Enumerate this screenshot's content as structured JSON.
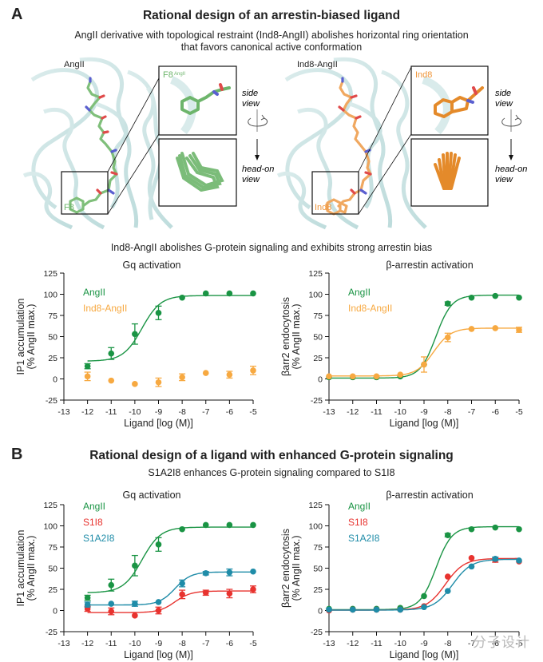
{
  "panelA": {
    "letter": "A",
    "title": "Rational design of an arrestin-biased ligand",
    "subtitle_line1": "AngII derivative with topological restraint (Ind8-AngII) abolishes horizontal ring orientation",
    "subtitle_line2": "that favors canonical active conformation",
    "structures": {
      "left": {
        "name": "AngII",
        "residue_label": "F8",
        "inset_label": "F8",
        "inset_superscript": "AngII",
        "color": "#6db56b"
      },
      "right": {
        "name": "Ind8-AngII",
        "residue_label": "Ind8",
        "inset_label": "Ind8",
        "color": "#f0963a"
      },
      "side_view": "side",
      "side_view2": "view",
      "headon_view": "head-on",
      "headon_view2": "view"
    },
    "charts_heading": "Ind8-AngII abolishes G-protein signaling and exhibits strong arrestin bias"
  },
  "panelB": {
    "letter": "B",
    "title": "Rational design of a ligand with enhanced G-protein signaling",
    "subtitle": "S1A2I8 enhances G-protein signaling compared to S1I8"
  },
  "colors": {
    "AngII": "#1a9444",
    "Ind8-AngII": "#f7a941",
    "S1I8": "#e8332f",
    "S1A2I8": "#1f8ca8"
  },
  "watermark": "分子设计",
  "chart_data": [
    {
      "id": "A-gq",
      "type": "scatter",
      "title": "Gq activation",
      "xlabel": "Ligand [log (M)]",
      "ylabel": "IP1 accumulation",
      "ylabel2": "(% AngII max.)",
      "xlim": [
        -13,
        -5
      ],
      "ylim": [
        -25,
        125
      ],
      "xticks": [
        -13,
        -12,
        -11,
        -10,
        -9,
        -8,
        -7,
        -6,
        -5
      ],
      "yticks": [
        -25,
        0,
        25,
        50,
        75,
        100,
        125
      ],
      "legend": "top-left",
      "series": [
        {
          "name": "AngII",
          "x": [
            -12,
            -11,
            -10,
            -9,
            -8,
            -7,
            -6,
            -5
          ],
          "y": [
            15,
            30,
            53,
            78,
            96,
            101,
            101,
            101
          ],
          "err": [
            3,
            7,
            12,
            8,
            0,
            0,
            0,
            0
          ],
          "fit": {
            "bottom": 21,
            "top": 98.5,
            "ec50": -9.7,
            "hill": 1.1
          }
        },
        {
          "name": "Ind8-AngII",
          "x": [
            -12,
            -11,
            -10,
            -9,
            -8,
            -7,
            -6,
            -5
          ],
          "y": [
            3,
            -2,
            -6,
            -4,
            2,
            7,
            5,
            10
          ],
          "err": [
            5,
            0,
            0,
            5,
            4,
            0,
            4,
            5
          ],
          "fit": null
        }
      ]
    },
    {
      "id": "A-barr",
      "type": "scatter",
      "title": "β-arrestin activation",
      "xlabel": "Ligand [log (M)]",
      "ylabel": "βarr2 endocytosis",
      "ylabel2": "(% AngII max.)",
      "xlim": [
        -13,
        -5
      ],
      "ylim": [
        -25,
        125
      ],
      "xticks": [
        -13,
        -12,
        -11,
        -10,
        -9,
        -8,
        -7,
        -6,
        -5
      ],
      "yticks": [
        -25,
        0,
        25,
        50,
        75,
        100,
        125
      ],
      "legend": "top-left",
      "series": [
        {
          "name": "AngII",
          "x": [
            -13,
            -12,
            -11,
            -10,
            -9,
            -8,
            -7,
            -6,
            -5
          ],
          "y": [
            2,
            2,
            2,
            3,
            17,
            89,
            96,
            98,
            96
          ],
          "err": [
            0,
            0,
            0,
            0,
            0,
            2,
            0,
            0,
            0
          ],
          "fit": {
            "bottom": 1,
            "top": 99,
            "ec50": -8.5,
            "hill": 1.3
          }
        },
        {
          "name": "Ind8-AngII",
          "x": [
            -13,
            -12,
            -11,
            -10,
            -9,
            -8,
            -7,
            -6,
            -5
          ],
          "y": [
            3,
            3,
            3,
            5,
            17,
            49,
            59,
            60,
            58
          ],
          "err": [
            0,
            0,
            0,
            0,
            9,
            5,
            0,
            0,
            3
          ],
          "fit": {
            "bottom": 3.5,
            "top": 60,
            "ec50": -8.6,
            "hill": 1.2
          }
        }
      ]
    },
    {
      "id": "B-gq",
      "type": "scatter",
      "title": "Gq activation",
      "xlabel": "Ligand [log (M)]",
      "ylabel": "IP1 accumulation",
      "ylabel2": "(% AngII max.)",
      "xlim": [
        -13,
        -5
      ],
      "ylim": [
        -25,
        125
      ],
      "xticks": [
        -13,
        -12,
        -11,
        -10,
        -9,
        -8,
        -7,
        -6,
        -5
      ],
      "yticks": [
        -25,
        0,
        25,
        50,
        75,
        100,
        125
      ],
      "legend": "top-left",
      "series": [
        {
          "name": "AngII",
          "x": [
            -12,
            -11,
            -10,
            -9,
            -8,
            -7,
            -6,
            -5
          ],
          "y": [
            15,
            30,
            53,
            78,
            96,
            101,
            101,
            101
          ],
          "err": [
            3,
            7,
            12,
            8,
            0,
            0,
            0,
            0
          ],
          "fit": {
            "bottom": 21,
            "top": 98.5,
            "ec50": -9.7,
            "hill": 1.1
          }
        },
        {
          "name": "S1I8",
          "x": [
            -12,
            -11,
            -10,
            -9,
            -8,
            -7,
            -6,
            -5
          ],
          "y": [
            2,
            -1,
            -6,
            0,
            19,
            21,
            20,
            25
          ],
          "err": [
            3,
            4,
            0,
            4,
            5,
            3,
            5,
            4
          ],
          "fit": {
            "bottom": -2.5,
            "top": 23,
            "ec50": -8.3,
            "hill": 1.3
          }
        },
        {
          "name": "S1A2I8",
          "x": [
            -12,
            -11,
            -10,
            -9,
            -8,
            -7,
            -6,
            -5
          ],
          "y": [
            7,
            8,
            8,
            10,
            32,
            44,
            45,
            46
          ],
          "err": [
            3,
            0,
            3,
            0,
            4,
            2,
            4,
            0
          ],
          "fit": {
            "bottom": 6.5,
            "top": 45.5,
            "ec50": -8.3,
            "hill": 1.3
          }
        }
      ]
    },
    {
      "id": "B-barr",
      "type": "scatter",
      "title": "β-arrestin activation",
      "xlabel": "Ligand [log (M)]",
      "ylabel": "βarr2 endocytosis",
      "ylabel2": "(% AngII max.)",
      "xlim": [
        -13,
        -5
      ],
      "ylim": [
        -25,
        125
      ],
      "xticks": [
        -13,
        -12,
        -11,
        -10,
        -9,
        -8,
        -7,
        -6,
        -5
      ],
      "yticks": [
        -25,
        0,
        25,
        50,
        75,
        100,
        125
      ],
      "legend": "top-left",
      "series": [
        {
          "name": "AngII",
          "x": [
            -13,
            -12,
            -11,
            -10,
            -9,
            -8,
            -7,
            -6,
            -5
          ],
          "y": [
            2,
            2,
            2,
            3,
            17,
            89,
            96,
            98,
            96
          ],
          "err": [
            0,
            0,
            0,
            0,
            0,
            2,
            0,
            0,
            0
          ],
          "fit": {
            "bottom": 1,
            "top": 99,
            "ec50": -8.5,
            "hill": 1.3
          }
        },
        {
          "name": "S1I8",
          "x": [
            -13,
            -12,
            -11,
            -10,
            -9,
            -8,
            -7,
            -6,
            -5
          ],
          "y": [
            0,
            1,
            1,
            1,
            5,
            40,
            62,
            60,
            58
          ],
          "err": [
            0,
            0,
            0,
            0,
            0,
            0,
            0,
            3,
            0
          ],
          "fit": {
            "bottom": 0.5,
            "top": 61.5,
            "ec50": -8.1,
            "hill": 1.1
          }
        },
        {
          "name": "S1A2I8",
          "x": [
            -13,
            -12,
            -11,
            -10,
            -9,
            -8,
            -7,
            -6,
            -5
          ],
          "y": [
            1,
            1,
            1,
            1,
            4,
            23,
            52,
            61,
            59
          ],
          "err": [
            0,
            0,
            0,
            0,
            0,
            0,
            0,
            2,
            0
          ],
          "fit": {
            "bottom": 0.5,
            "top": 60.5,
            "ec50": -7.8,
            "hill": 1.1
          }
        }
      ]
    }
  ]
}
